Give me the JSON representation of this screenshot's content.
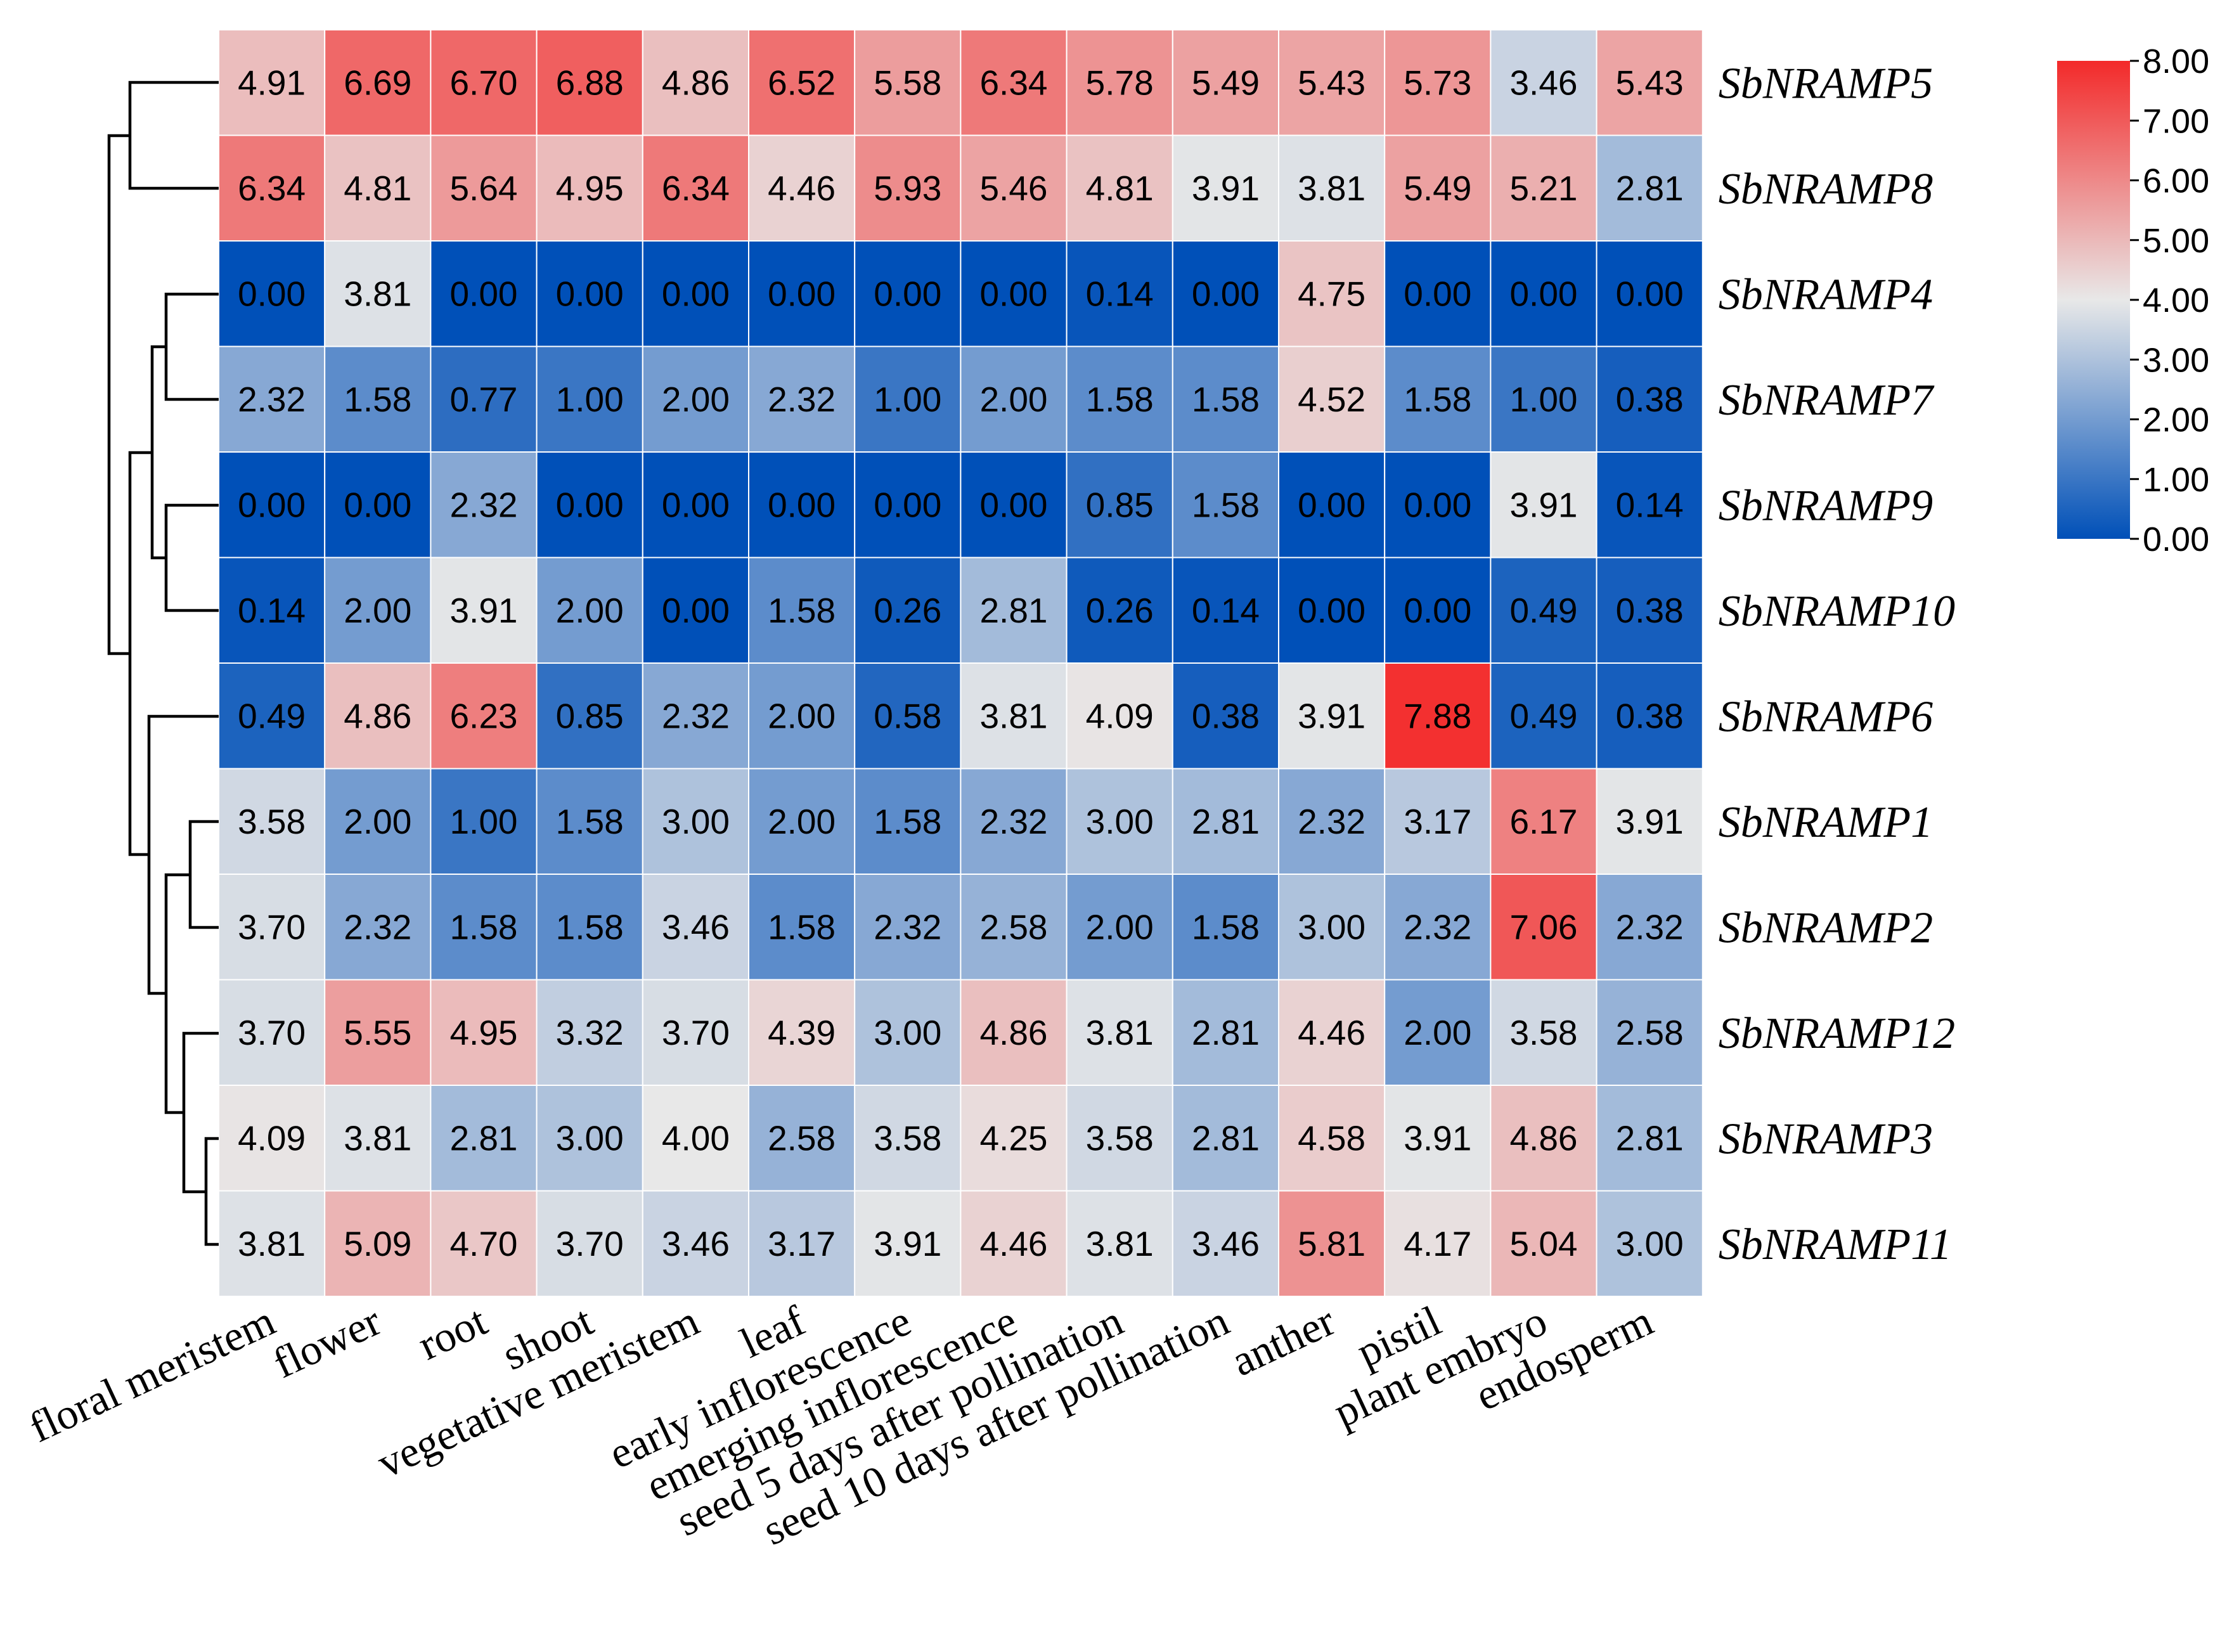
{
  "chart_data": {
    "type": "heatmap",
    "title": "",
    "rows": [
      "SbNRAMP5",
      "SbNRAMP8",
      "SbNRAMP4",
      "SbNRAMP7",
      "SbNRAMP9",
      "SbNRAMP10",
      "SbNRAMP6",
      "SbNRAMP1",
      "SbNRAMP2",
      "SbNRAMP12",
      "SbNRAMP3",
      "SbNRAMP11"
    ],
    "columns": [
      "floral meristem",
      "flower",
      "root",
      "shoot",
      "vegetative meristem",
      "leaf",
      "early inflorescence",
      "emerging inflorescence",
      "seed 5 days after pollination",
      "seed 10 days after pollination",
      "anther",
      "pistil",
      "plant embryo",
      "endosperm"
    ],
    "values": [
      [
        "4.91",
        "6.69",
        "6.70",
        "6.88",
        "4.86",
        "6.52",
        "5.58",
        "6.34",
        "5.78",
        "5.49",
        "5.43",
        "5.73",
        "3.46",
        "5.43"
      ],
      [
        "6.34",
        "4.81",
        "5.64",
        "4.95",
        "6.34",
        "4.46",
        "5.93",
        "5.46",
        "4.81",
        "3.91",
        "3.81",
        "5.49",
        "5.21",
        "2.81"
      ],
      [
        "0.00",
        "3.81",
        "0.00",
        "0.00",
        "0.00",
        "0.00",
        "0.00",
        "0.00",
        "0.14",
        "0.00",
        "4.75",
        "0.00",
        "0.00",
        "0.00"
      ],
      [
        "2.32",
        "1.58",
        "0.77",
        "1.00",
        "2.00",
        "2.32",
        "1.00",
        "2.00",
        "1.58",
        "1.58",
        "4.52",
        "1.58",
        "1.00",
        "0.38"
      ],
      [
        "0.00",
        "0.00",
        "2.32",
        "0.00",
        "0.00",
        "0.00",
        "0.00",
        "0.00",
        "0.85",
        "1.58",
        "0.00",
        "0.00",
        "3.91",
        "0.14"
      ],
      [
        "0.14",
        "2.00",
        "3.91",
        "2.00",
        "0.00",
        "1.58",
        "0.26",
        "2.81",
        "0.26",
        "0.14",
        "0.00",
        "0.00",
        "0.49",
        "0.38"
      ],
      [
        "0.49",
        "4.86",
        "6.23",
        "0.85",
        "2.32",
        "2.00",
        "0.58",
        "3.81",
        "4.09",
        "0.38",
        "3.91",
        "7.88",
        "0.49",
        "0.38"
      ],
      [
        "3.58",
        "2.00",
        "1.00",
        "1.58",
        "3.00",
        "2.00",
        "1.58",
        "2.32",
        "3.00",
        "2.81",
        "2.32",
        "3.17",
        "6.17",
        "3.91"
      ],
      [
        "3.70",
        "2.32",
        "1.58",
        "1.58",
        "3.46",
        "1.58",
        "2.32",
        "2.58",
        "2.00",
        "1.58",
        "3.00",
        "2.32",
        "7.06",
        "2.32"
      ],
      [
        "3.70",
        "5.55",
        "4.95",
        "3.32",
        "3.70",
        "4.39",
        "3.00",
        "4.86",
        "3.81",
        "2.81",
        "4.46",
        "2.00",
        "3.58",
        "2.58"
      ],
      [
        "4.09",
        "3.81",
        "2.81",
        "3.00",
        "4.00",
        "2.58",
        "3.58",
        "4.25",
        "3.58",
        "2.81",
        "4.58",
        "3.91",
        "4.86",
        "2.81"
      ],
      [
        "3.81",
        "5.09",
        "4.70",
        "3.70",
        "3.46",
        "3.17",
        "3.91",
        "4.46",
        "3.81",
        "3.46",
        "5.81",
        "4.17",
        "5.04",
        "3.00"
      ]
    ],
    "color_scale": {
      "min": 0,
      "mid": 4,
      "max": 8,
      "low_color": "#0050b8",
      "mid_color": "#e8e8e8",
      "high_color": "#f32a2a"
    },
    "colorbar_ticks": [
      "8.00",
      "7.00",
      "6.00",
      "5.00",
      "4.00",
      "3.00",
      "2.00",
      "1.00",
      "0.00"
    ],
    "dendrogram": "hierarchical clustering of rows"
  }
}
